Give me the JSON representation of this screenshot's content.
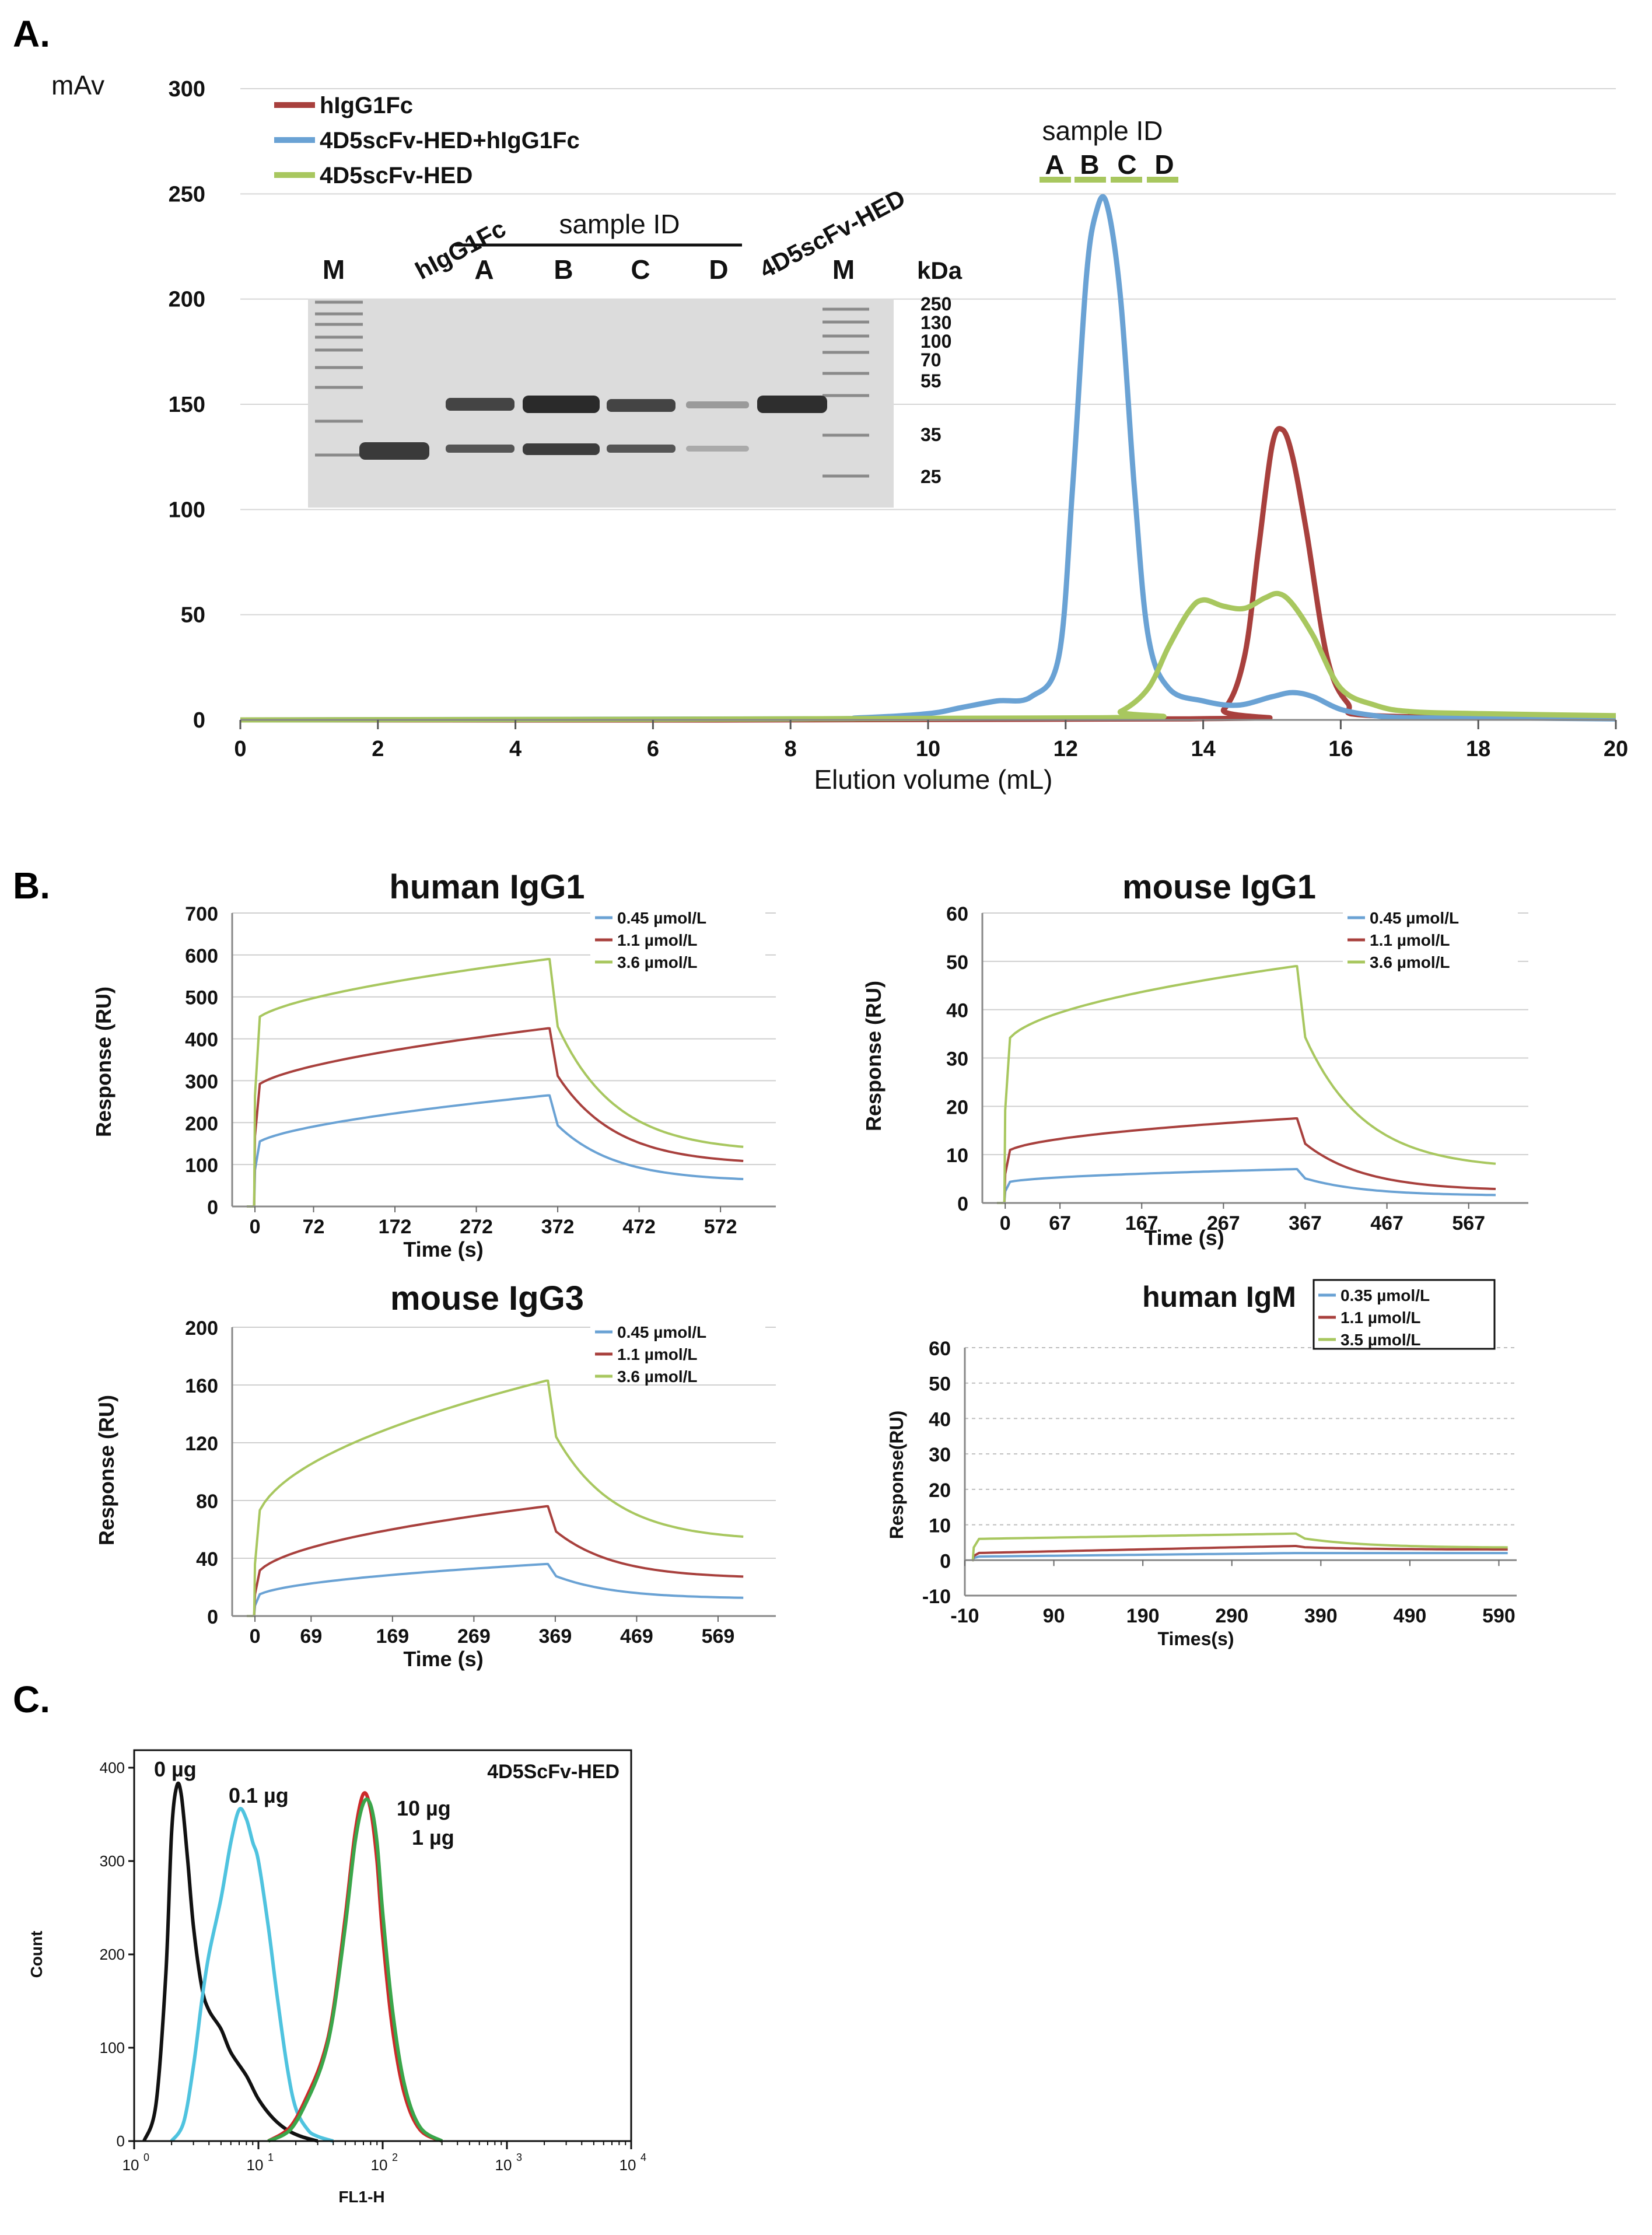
{
  "panels": {
    "a": "A.",
    "b": "B.",
    "c": "C."
  },
  "colors": {
    "red": "#a8403d",
    "blue": "#6aa2d4",
    "green": "#a8c75f",
    "cyan": "#4fc3df",
    "black": "#111111",
    "flow_red": "#cc2a2a",
    "flow_green": "#3aa64a"
  },
  "chart_data": [
    {
      "id": "A_sec",
      "type": "line",
      "title": "",
      "xlabel": "Elution volume (mL)",
      "ylabel": "mAv",
      "xlim": [
        0,
        20
      ],
      "ylim": [
        0,
        300
      ],
      "xticks": [
        "0",
        "2",
        "4",
        "6",
        "8",
        "10",
        "12",
        "14",
        "16",
        "18",
        "20"
      ],
      "yticks": [
        "0",
        "50",
        "100",
        "150",
        "200",
        "250",
        "300"
      ],
      "series": [
        {
          "name": "hIgG1Fc",
          "color": "red",
          "x": [
            0,
            13.8,
            14.3,
            14.6,
            14.8,
            15.0,
            15.15,
            15.3,
            15.5,
            15.8,
            16.1,
            16.5,
            20
          ],
          "y": [
            0,
            0.5,
            5,
            30,
            80,
            130,
            138,
            125,
            90,
            30,
            8,
            2,
            1
          ]
        },
        {
          "name": "4D5scFv-HED+hIgG1Fc",
          "color": "blue",
          "x": [
            0,
            8,
            9,
            10,
            10.5,
            11,
            11.5,
            11.9,
            12.1,
            12.3,
            12.45,
            12.6,
            12.8,
            13.0,
            13.2,
            13.5,
            14,
            14.5,
            15,
            15.3,
            15.6,
            16,
            16.5,
            17,
            18,
            20
          ],
          "y": [
            0,
            0.5,
            1,
            3,
            6,
            9,
            11,
            30,
            110,
            210,
            242,
            245,
            200,
            110,
            40,
            15,
            9,
            7,
            11,
            13,
            11,
            5,
            2,
            1,
            1,
            0.5
          ]
        },
        {
          "name": "4D5scFv-HED",
          "color": "green",
          "x": [
            0,
            12.4,
            12.8,
            13.2,
            13.5,
            13.8,
            14.0,
            14.3,
            14.6,
            14.9,
            15.1,
            15.3,
            15.6,
            16.0,
            16.5,
            17,
            18,
            20
          ],
          "y": [
            0,
            1,
            4,
            15,
            35,
            52,
            57,
            54,
            53,
            58,
            60,
            55,
            40,
            15,
            7,
            4,
            3,
            2
          ]
        }
      ],
      "gel_inset": {
        "lanes": [
          "M",
          "hIgG1Fc",
          "A",
          "B",
          "C",
          "D",
          "4D5scFv-HED",
          "M"
        ],
        "group_label": "sample ID",
        "unit": "kDa",
        "markers": [
          "250",
          "130",
          "100",
          "70",
          "55",
          "35",
          "25"
        ]
      },
      "sample_id": {
        "label": "sample ID",
        "fractions": [
          "A",
          "B",
          "C",
          "D"
        ]
      }
    },
    {
      "id": "B1",
      "type": "line",
      "title": "human IgG1",
      "xlabel": "Time (s)",
      "ylabel": "Response (RU)",
      "xlim": [
        -28,
        640
      ],
      "ylim": [
        0,
        700
      ],
      "xticks": [
        "0",
        "72",
        "172",
        "272",
        "372",
        "472",
        "572"
      ],
      "xtick_vals": [
        0,
        72,
        172,
        272,
        372,
        472,
        572
      ],
      "yticks": [
        "0",
        "100",
        "200",
        "300",
        "400",
        "500",
        "600",
        "700"
      ],
      "legend": [
        "0.45 µmol/L",
        "1.1 µmol/L",
        "3.6 µmol/L"
      ],
      "series": [
        {
          "name": "0.45 µmol/L",
          "color": "blue",
          "kinetic": [
            0,
            360,
            145,
            265,
            60,
            0.6
          ]
        },
        {
          "name": "1.1 µmol/L",
          "color": "red",
          "kinetic": [
            0,
            360,
            280,
            425,
            100,
            0.6
          ]
        },
        {
          "name": "3.6 µmol/L",
          "color": "green",
          "kinetic": [
            0,
            360,
            440,
            590,
            130,
            0.6
          ]
        }
      ]
    },
    {
      "id": "B2",
      "type": "line",
      "title": "mouse IgG1",
      "xlabel": "Time (s)",
      "ylabel": "Response (RU)",
      "xlim": [
        -28,
        640
      ],
      "ylim": [
        0,
        60
      ],
      "xticks": [
        "0",
        "67",
        "167",
        "267",
        "367",
        "467",
        "567"
      ],
      "xtick_vals": [
        0,
        67,
        167,
        267,
        367,
        467,
        567
      ],
      "yticks": [
        "0",
        "10",
        "20",
        "30",
        "40",
        "50",
        "60"
      ],
      "legend": [
        "0.45 µmol/L",
        "1.1 µmol/L",
        "3.6 µmol/L"
      ],
      "series": [
        {
          "name": "0.45 µmol/L",
          "color": "blue",
          "kinetic": [
            0,
            355,
            4,
            7,
            1.5,
            0.5
          ]
        },
        {
          "name": "1.1 µmol/L",
          "color": "red",
          "kinetic": [
            0,
            355,
            10,
            17.5,
            2.5,
            0.5
          ]
        },
        {
          "name": "3.6 µmol/L",
          "color": "green",
          "kinetic": [
            0,
            355,
            32,
            49,
            7,
            0.5
          ]
        }
      ]
    },
    {
      "id": "B3",
      "type": "line",
      "title": "mouse IgG3",
      "xlabel": "Time (s)",
      "ylabel": "Response (RU)",
      "xlim": [
        -28,
        640
      ],
      "ylim": [
        0,
        200
      ],
      "xticks": [
        "0",
        "69",
        "169",
        "269",
        "369",
        "469",
        "569"
      ],
      "xtick_vals": [
        0,
        69,
        169,
        269,
        369,
        469,
        569
      ],
      "yticks": [
        "0",
        "40",
        "80",
        "120",
        "160",
        "200"
      ],
      "legend": [
        "0.45 µmol/L",
        "1.1 µmol/L",
        "3.6 µmol/L"
      ],
      "series": [
        {
          "name": "0.45 µmol/L",
          "color": "blue",
          "kinetic": [
            0,
            358,
            12,
            36,
            12,
            0.5
          ]
        },
        {
          "name": "1.1 µmol/L",
          "color": "red",
          "kinetic": [
            0,
            358,
            25,
            76,
            26,
            0.5
          ]
        },
        {
          "name": "3.6 µmol/L",
          "color": "green",
          "kinetic": [
            0,
            358,
            60,
            163,
            52,
            0.5
          ]
        }
      ]
    },
    {
      "id": "B4",
      "type": "line",
      "title": "human IgM",
      "xlabel": "Times(s)",
      "ylabel": "Response(RU)",
      "xlim": [
        -10,
        610
      ],
      "ylim": [
        -10,
        60
      ],
      "xticks": [
        "-10",
        "90",
        "190",
        "290",
        "390",
        "490",
        "590"
      ],
      "xtick_vals": [
        -10,
        90,
        190,
        290,
        390,
        490,
        590
      ],
      "yticks": [
        "-10",
        "0",
        "10",
        "20",
        "30",
        "40",
        "50",
        "60"
      ],
      "legend": [
        "0.35 µmol/L",
        "1.1 µmol/L",
        "3.5 µmol/L"
      ],
      "series": [
        {
          "name": "0.35 µmol/L",
          "color": "blue",
          "kinetic": [
            0,
            360,
            1,
            2,
            2,
            1.0
          ]
        },
        {
          "name": "1.1 µmol/L",
          "color": "red",
          "kinetic": [
            0,
            360,
            2,
            4,
            3,
            1.0
          ]
        },
        {
          "name": "3.5 µmol/L",
          "color": "green",
          "kinetic": [
            0,
            360,
            6,
            7.5,
            3.5,
            1.0
          ]
        }
      ]
    },
    {
      "id": "C_flow",
      "type": "line",
      "title": "4D5ScFv-HED",
      "xlabel": "FL1-H",
      "ylabel": "Count",
      "xscale": "log",
      "xlim": [
        1,
        10000
      ],
      "ylim": [
        0,
        400
      ],
      "xticks": [
        "10",
        "10",
        "10",
        "10",
        "10"
      ],
      "xtick_exp": [
        "0",
        "1",
        "2",
        "3",
        "4"
      ],
      "yticks": [
        "0",
        "100",
        "200",
        "300",
        "400"
      ],
      "labels": [
        {
          "text": "0 µg",
          "color": "black"
        },
        {
          "text": "0.1 µg",
          "color": "cyan"
        },
        {
          "text": "10 µg",
          "color": "flow_red"
        },
        {
          "text": "1 µg",
          "color": "flow_green"
        }
      ],
      "series": [
        {
          "name": "0 µg",
          "color": "black",
          "x": [
            1.2,
            1.5,
            1.8,
            2.0,
            2.2,
            2.4,
            2.7,
            3.0,
            3.5,
            4,
            5,
            6,
            8,
            10,
            13,
            17,
            22,
            30
          ],
          "y": [
            0,
            40,
            180,
            330,
            380,
            370,
            300,
            230,
            165,
            140,
            120,
            95,
            70,
            45,
            25,
            12,
            5,
            0
          ]
        },
        {
          "name": "0.1 µg",
          "color": "cyan",
          "x": [
            2,
            2.5,
            3,
            3.5,
            4,
            5,
            6,
            7,
            8,
            9,
            10,
            12,
            14,
            17,
            20,
            25,
            30,
            40
          ],
          "y": [
            0,
            20,
            80,
            150,
            200,
            260,
            320,
            355,
            345,
            320,
            300,
            230,
            160,
            80,
            35,
            12,
            5,
            0
          ]
        },
        {
          "name": "10 µg",
          "color": "flow_red",
          "x": [
            12,
            18,
            25,
            33,
            40,
            50,
            60,
            70,
            80,
            90,
            100,
            120,
            150,
            200,
            300
          ],
          "y": [
            0,
            15,
            50,
            90,
            140,
            240,
            330,
            372,
            355,
            300,
            220,
            120,
            50,
            12,
            0
          ]
        },
        {
          "name": "1 µg",
          "color": "flow_green",
          "x": [
            12,
            18,
            25,
            33,
            40,
            50,
            60,
            70,
            80,
            90,
            100,
            120,
            150,
            200,
            300
          ],
          "y": [
            0,
            12,
            45,
            85,
            135,
            230,
            320,
            362,
            360,
            320,
            245,
            140,
            60,
            15,
            0
          ]
        }
      ]
    }
  ]
}
